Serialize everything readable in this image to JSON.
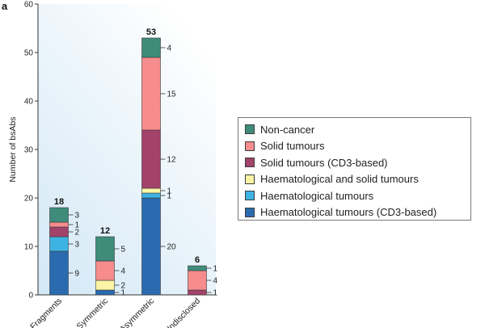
{
  "panel_label": "a",
  "chart_data": {
    "type": "bar",
    "stacked": true,
    "ylabel": "Number of bsAbs",
    "ylim": [
      0,
      60
    ],
    "yticks": [
      0,
      10,
      20,
      30,
      40,
      50,
      60
    ],
    "grid": false,
    "legend_position": "right",
    "categories": [
      "Fragments",
      "Symmetric",
      "Asymmetric",
      "Undisclosed"
    ],
    "totals": [
      18,
      12,
      53,
      6
    ],
    "series": [
      {
        "name": "Haematological tumours (CD3-based)",
        "color": "#2a6bb0",
        "values": [
          9,
          1,
          20,
          0
        ]
      },
      {
        "name": "Haematological tumours",
        "color": "#3db3e3",
        "values": [
          3,
          0,
          1,
          0
        ]
      },
      {
        "name": "Haematological and solid tumours",
        "color": "#faf4a6",
        "values": [
          0,
          2,
          1,
          0
        ]
      },
      {
        "name": "Solid tumours (CD3-based)",
        "color": "#a3426a",
        "values": [
          2,
          0,
          12,
          1
        ]
      },
      {
        "name": "Solid tumours",
        "color": "#f68c8c",
        "values": [
          1,
          4,
          15,
          4
        ]
      },
      {
        "name": "Non-cancer",
        "color": "#3f8c7a",
        "values": [
          3,
          5,
          4,
          1
        ]
      }
    ],
    "legend_order": [
      "Non-cancer",
      "Solid tumours",
      "Solid tumours (CD3-based)",
      "Haematological and solid tumours",
      "Haematological tumours",
      "Haematological tumours (CD3-based)"
    ]
  }
}
